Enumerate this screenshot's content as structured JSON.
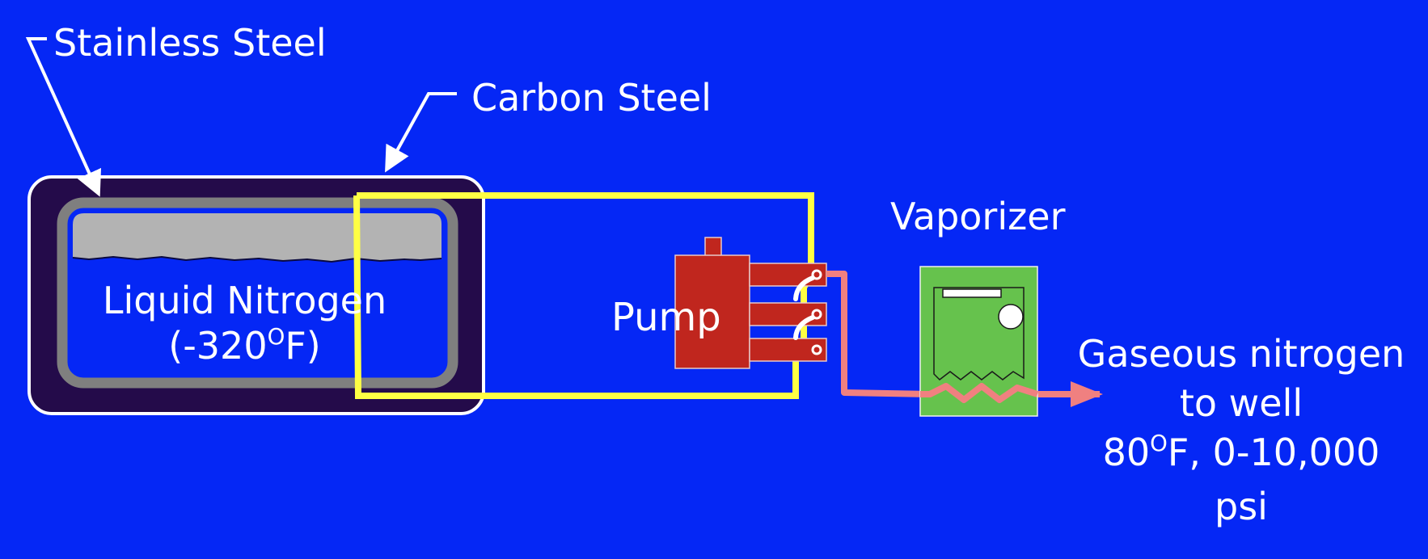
{
  "labels": {
    "stainless_steel": "Stainless Steel",
    "carbon_steel": "Carbon Steel",
    "vaporizer": "Vaporizer",
    "pump": "Pump",
    "liquid_nitrogen": {
      "line1": "Liquid Nitrogen",
      "line2_pre": "(-320",
      "line2_sup": "O",
      "line2_post": "F)"
    },
    "gaseous_output": {
      "line1": "Gaseous nitrogen",
      "line2": "to well",
      "line3_pre": "80",
      "line3_sup": "O",
      "line3_post": "F, 0-10,000",
      "line4": "psi"
    }
  },
  "colors": {
    "background": "#0527f5",
    "outer_tank": "#240b4a",
    "inner_tank_wall": "#7f7f7f",
    "vapor_space": "#b3b3b3",
    "liquid": "#0527f5",
    "suction_line": "#ffff44",
    "pump": "#c0261e",
    "discharge_line": "#f08080",
    "vaporizer": "#66c24d",
    "text": "#ffffff"
  }
}
